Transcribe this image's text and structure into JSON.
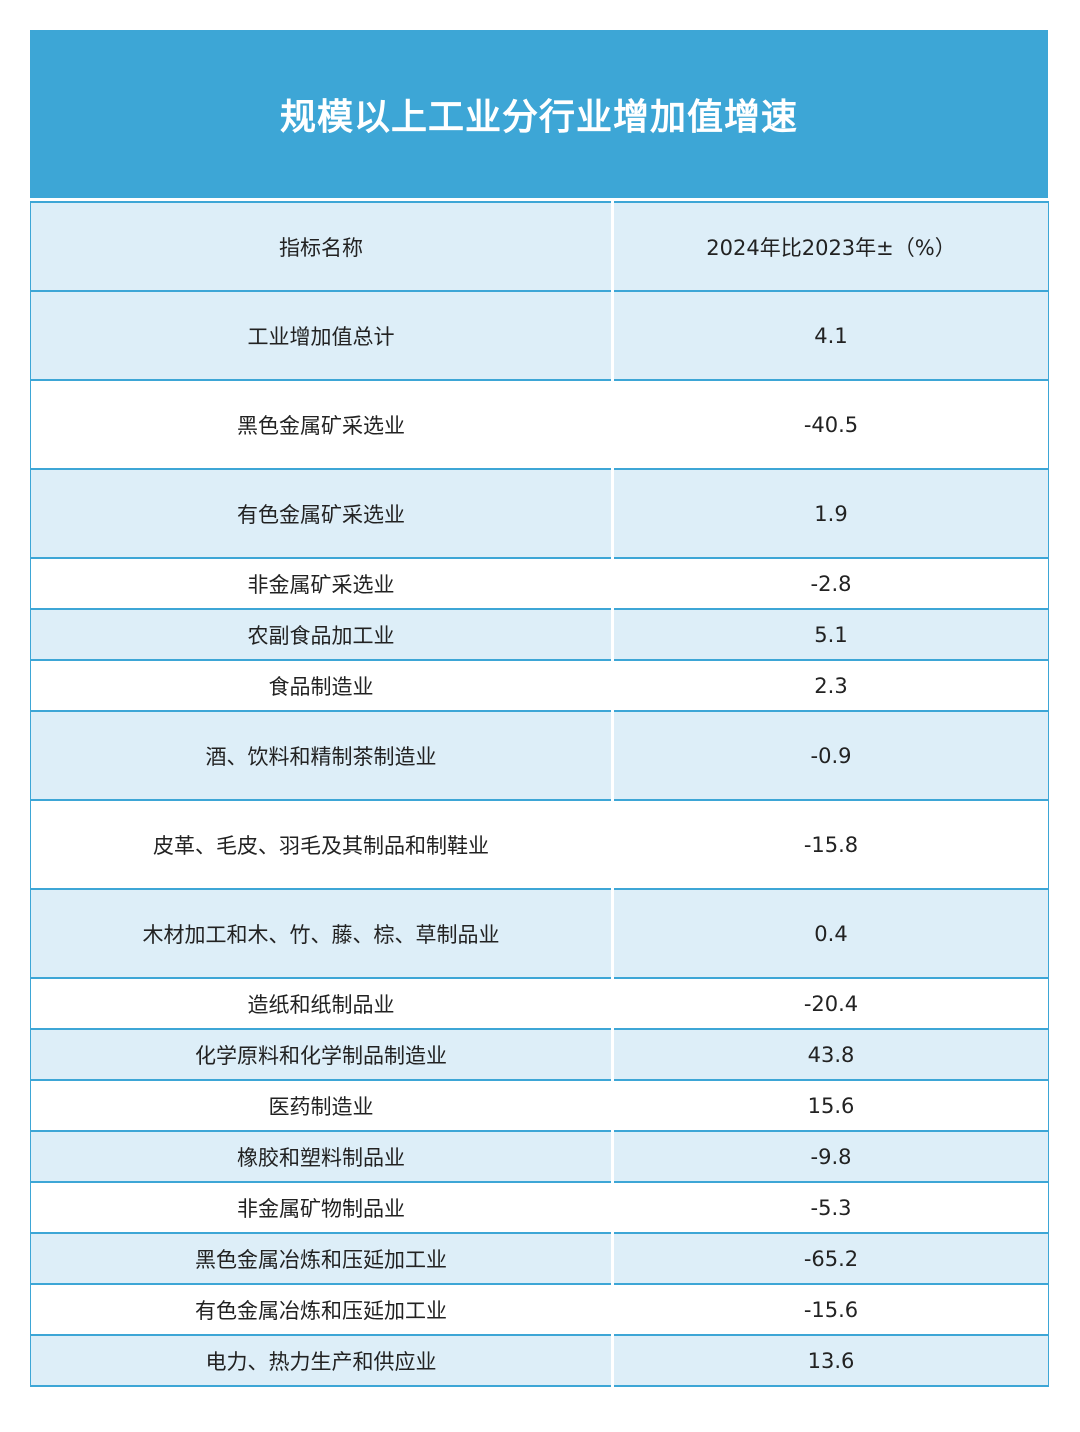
{
  "title": "规模以上工业分行业增加值增速",
  "header": {
    "col_name": "指标名称",
    "col_value": "2024年比2023年±（%）"
  },
  "rows": [
    {
      "name": "工业增加值总计",
      "value": "4.1",
      "shade": true,
      "tall": true
    },
    {
      "name": "黑色金属矿采选业",
      "value": "-40.5",
      "shade": false,
      "tall": true
    },
    {
      "name": "有色金属矿采选业",
      "value": "1.9",
      "shade": true,
      "tall": true
    },
    {
      "name": "非金属矿采选业",
      "value": "-2.8",
      "shade": false,
      "tall": false
    },
    {
      "name": "农副食品加工业",
      "value": "5.1",
      "shade": true,
      "tall": false
    },
    {
      "name": "食品制造业",
      "value": "2.3",
      "shade": false,
      "tall": false
    },
    {
      "name": "酒、饮料和精制茶制造业",
      "value": "-0.9",
      "shade": true,
      "tall": true
    },
    {
      "name": "皮革、毛皮、羽毛及其制品和制鞋业",
      "value": "-15.8",
      "shade": false,
      "tall": true
    },
    {
      "name": "木材加工和木、竹、藤、棕、草制品业",
      "value": "0.4",
      "shade": true,
      "tall": true
    },
    {
      "name": "造纸和纸制品业",
      "value": "-20.4",
      "shade": false,
      "tall": false
    },
    {
      "name": "化学原料和化学制品制造业",
      "value": "43.8",
      "shade": true,
      "tall": false
    },
    {
      "name": "医药制造业",
      "value": "15.6",
      "shade": false,
      "tall": false
    },
    {
      "name": "橡胶和塑料制品业",
      "value": "-9.8",
      "shade": true,
      "tall": false
    },
    {
      "name": "非金属矿物制品业",
      "value": "-5.3",
      "shade": false,
      "tall": false
    },
    {
      "name": "黑色金属冶炼和压延加工业",
      "value": "-65.2",
      "shade": true,
      "tall": false
    },
    {
      "name": "有色金属冶炼和压延加工业",
      "value": "-15.6",
      "shade": false,
      "tall": false
    },
    {
      "name": "电力、热力生产和供应业",
      "value": "13.6",
      "shade": true,
      "tall": false
    }
  ],
  "colors": {
    "title_bg": "#3da6d6",
    "row_shade": "#ddeef8",
    "row_plain": "#ffffff",
    "border": "#3da6d6"
  }
}
